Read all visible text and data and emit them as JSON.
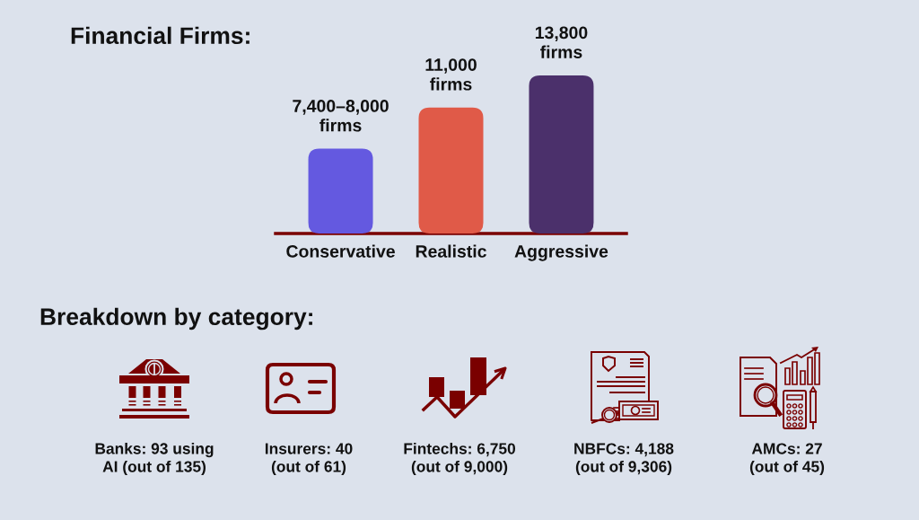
{
  "chart_data": [
    {
      "type": "bar",
      "title": "Financial Firms:",
      "categories": [
        "Conservative",
        "Realistic",
        "Aggressive"
      ],
      "values": [
        7400,
        11000,
        13800
      ],
      "colors": [
        "#6459e0",
        "#e05a48",
        "#4b306b"
      ],
      "ylim": [
        0,
        13800
      ],
      "tick_labels": "x",
      "value_labels": [
        "7,400–8,000\nfirms",
        "11,000\nfirms",
        "13,800\nfirms"
      ]
    },
    {
      "type": "other",
      "title": "Breakdown by category:",
      "annotations": [
        "Banks: 93 using\nAI (out of 135)",
        "Insurers: 40\n(out of 61)",
        "Fintechs: 6,750\n(out of 9,000)",
        "NBFCs: 4,188\n(out of 9,306)",
        "AMCs: 27\n(out of 45)"
      ]
    }
  ]
}
